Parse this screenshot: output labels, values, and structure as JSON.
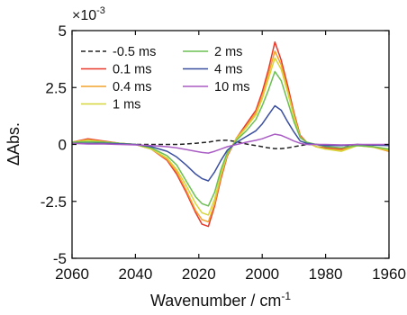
{
  "chart_data": {
    "type": "line",
    "title": "",
    "xlabel": "Wavenumber / cm",
    "xlabel_sup": "-1",
    "ylabel": "ΔAbs.",
    "y_multiplier_base": "×10",
    "y_multiplier_exp": "-3",
    "xlim": [
      2060,
      1960
    ],
    "x_reversed": true,
    "ylim": [
      -5,
      5
    ],
    "x_ticks": [
      2060,
      2040,
      2020,
      2000,
      1980,
      1960
    ],
    "x_tick_labels": [
      "2060",
      "2040",
      "2020",
      "2000",
      "1980",
      "1960"
    ],
    "y_ticks": [
      -5,
      -2.5,
      0,
      2.5,
      5
    ],
    "y_tick_labels": [
      "-5",
      "-2.5",
      "0",
      "2.5",
      "5"
    ],
    "grid": false,
    "legend_placement": "top-left",
    "legend_columns": 2,
    "x": [
      2060,
      2055,
      2050,
      2045,
      2040,
      2035,
      2030,
      2027,
      2024,
      2021,
      2019,
      2017,
      2015,
      2013,
      2011,
      2008,
      2005,
      2002,
      2000,
      1998,
      1996,
      1994,
      1992,
      1990,
      1988,
      1986,
      1983,
      1980,
      1975,
      1970,
      1965,
      1960
    ],
    "series": [
      {
        "name": "-0.5 ms",
        "color": "#222222",
        "dash": "5,3",
        "values": [
          0.05,
          0.05,
          0.03,
          0.02,
          0.0,
          0.0,
          0.0,
          0.0,
          0.02,
          0.05,
          0.08,
          0.1,
          0.15,
          0.18,
          0.18,
          0.12,
          0.02,
          -0.05,
          -0.1,
          -0.15,
          -0.18,
          -0.18,
          -0.15,
          -0.1,
          -0.05,
          0.0,
          0.0,
          -0.02,
          -0.05,
          -0.03,
          -0.02,
          -0.02
        ]
      },
      {
        "name": "0.1 ms",
        "color": "#e8382a",
        "dash": "",
        "values": [
          0.1,
          0.25,
          0.15,
          0.05,
          0.0,
          -0.2,
          -0.7,
          -1.3,
          -2.1,
          -3.0,
          -3.5,
          -3.6,
          -2.7,
          -1.5,
          -0.5,
          0.3,
          0.9,
          1.5,
          2.3,
          3.3,
          4.5,
          3.7,
          2.6,
          1.4,
          0.4,
          0.1,
          -0.1,
          -0.15,
          -0.2,
          0.0,
          -0.1,
          -0.3
        ]
      },
      {
        "name": "0.4 ms",
        "color": "#f2a22e",
        "dash": "",
        "values": [
          0.1,
          0.2,
          0.12,
          0.05,
          0.0,
          -0.2,
          -0.65,
          -1.2,
          -2.0,
          -2.9,
          -3.3,
          -3.4,
          -2.6,
          -1.4,
          -0.45,
          0.3,
          0.8,
          1.4,
          2.1,
          3.1,
          4.1,
          3.5,
          2.4,
          1.3,
          0.35,
          0.1,
          -0.1,
          -0.2,
          -0.25,
          -0.05,
          -0.12,
          -0.3
        ]
      },
      {
        "name": "1 ms",
        "color": "#d6d63a",
        "dash": "",
        "values": [
          0.1,
          0.18,
          0.12,
          0.05,
          0.0,
          -0.2,
          -0.6,
          -1.1,
          -1.8,
          -2.6,
          -3.0,
          -3.1,
          -2.4,
          -1.3,
          -0.4,
          0.25,
          0.75,
          1.3,
          2.0,
          2.9,
          3.8,
          3.3,
          2.3,
          1.2,
          0.3,
          0.1,
          -0.1,
          -0.2,
          -0.3,
          -0.05,
          -0.12,
          -0.25
        ]
      },
      {
        "name": "2 ms",
        "color": "#6cbf52",
        "dash": "",
        "values": [
          0.1,
          0.12,
          0.1,
          0.05,
          0.0,
          -0.15,
          -0.5,
          -0.9,
          -1.6,
          -2.3,
          -2.6,
          -2.7,
          -2.1,
          -1.1,
          -0.35,
          0.2,
          0.6,
          1.1,
          1.7,
          2.4,
          3.2,
          2.8,
          1.9,
          1.0,
          0.3,
          0.1,
          0.0,
          -0.1,
          -0.15,
          -0.05,
          -0.1,
          -0.2
        ]
      },
      {
        "name": "4 ms",
        "color": "#3a4fa0",
        "dash": "",
        "values": [
          0.05,
          0.05,
          0.05,
          0.03,
          0.0,
          -0.1,
          -0.3,
          -0.55,
          -0.9,
          -1.3,
          -1.5,
          -1.6,
          -1.2,
          -0.7,
          -0.25,
          0.1,
          0.35,
          0.6,
          0.9,
          1.3,
          1.7,
          1.5,
          1.0,
          0.55,
          0.15,
          0.05,
          0.0,
          -0.05,
          -0.05,
          0.0,
          -0.03,
          -0.05
        ]
      },
      {
        "name": "10 ms",
        "color": "#a95cc4",
        "dash": "",
        "values": [
          0.05,
          0.02,
          0.02,
          0.0,
          -0.02,
          -0.05,
          -0.1,
          -0.15,
          -0.22,
          -0.3,
          -0.35,
          -0.38,
          -0.3,
          -0.2,
          -0.1,
          0.0,
          0.1,
          0.18,
          0.25,
          0.35,
          0.45,
          0.4,
          0.28,
          0.15,
          0.05,
          0.0,
          0.0,
          0.0,
          -0.02,
          0.0,
          0.0,
          0.0
        ]
      }
    ]
  }
}
